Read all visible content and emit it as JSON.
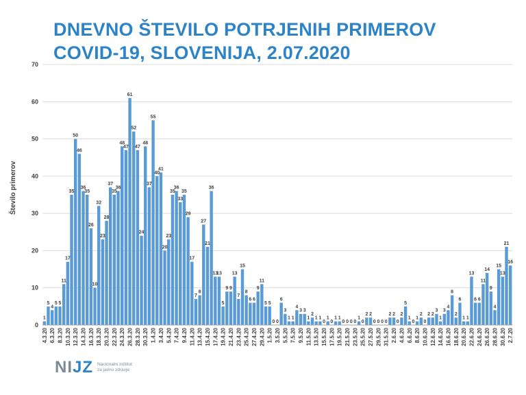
{
  "header": {
    "title_line1": "DNEVNO ŠTEVILO POTRJENIH PRIMEROV",
    "title_line2": "COVID-19, SLOVENIJA, 2.07.2020"
  },
  "logo": {
    "mark_left": "NI",
    "mark_right": "JZ",
    "text_line1": "Nacionalni inštitut",
    "text_line2": "za javno zdravje"
  },
  "colors": {
    "bar": "#5b9bd5",
    "title": "#2e83c6"
  },
  "chart_data": {
    "type": "bar",
    "title": "DNEVNO ŠTEVILO POTRJENIH PRIMEROV COVID-19, SLOVENIJA, 2.07.2020",
    "xlabel": "",
    "ylabel": "Število primerov",
    "ylim": [
      0,
      70
    ],
    "yticks": [
      0,
      10,
      20,
      30,
      40,
      50,
      60,
      70
    ],
    "grid": true,
    "start_date": "2020-03-04",
    "end_date": "2020-07-02",
    "xtick_labels": [
      "4.3.20",
      "6.3.20",
      "8.3.20",
      "10.3.20",
      "12.3.20",
      "14.3.20",
      "16.3.20",
      "18.3.20",
      "20.3.20",
      "22.3.20",
      "24.3.20",
      "26.3.20",
      "28.3.20",
      "30.3.20",
      "1.4.20",
      "3.4.20",
      "5.4.20",
      "7.4.20",
      "9.4.20",
      "11.4.20",
      "13.4.20",
      "15.4.20",
      "17.4.20",
      "19.4.20",
      "21.4.20",
      "23.4.20",
      "25.4.20",
      "27.4.20",
      "29.4.20",
      "1.5.20",
      "3.5.20",
      "5.5.20",
      "7.5.20",
      "9.5.20",
      "11.5.20",
      "13.5.20",
      "15.5.20",
      "17.5.20",
      "19.5.20",
      "21.5.20",
      "23.5.20",
      "25.5.20",
      "27.5.20",
      "29.5.20",
      "31.5.20",
      "2.6.20",
      "4.6.20",
      "6.6.20",
      "8.6.20",
      "10.6.20",
      "12.6.20",
      "14.6.20",
      "16.6.20",
      "18.6.20",
      "20.6.20",
      "22.6.20",
      "24.6.20",
      "26.6.20",
      "28.6.20",
      "30.6.20",
      "2.7.20"
    ],
    "values": [
      1,
      5,
      4,
      5,
      5,
      11,
      17,
      35,
      50,
      46,
      36,
      35,
      26,
      10,
      32,
      23,
      28,
      37,
      35,
      36,
      48,
      47,
      61,
      52,
      47,
      24,
      48,
      37,
      55,
      40,
      41,
      20,
      23,
      35,
      36,
      33,
      35,
      29,
      17,
      7,
      8,
      27,
      21,
      36,
      13,
      13,
      5,
      9,
      9,
      13,
      7,
      15,
      8,
      6,
      6,
      9,
      11,
      5,
      5,
      0,
      0,
      6,
      3,
      1,
      1,
      4,
      3,
      3,
      1,
      2,
      1,
      1,
      0,
      1,
      0,
      1,
      1,
      0,
      0,
      0,
      0,
      1,
      0,
      2,
      2,
      0,
      0,
      0,
      0,
      2,
      2,
      0,
      2,
      5,
      1,
      0,
      1,
      2,
      0,
      2,
      2,
      3,
      1,
      3,
      4,
      8,
      2,
      6,
      1,
      1,
      13,
      6,
      6,
      11,
      14,
      9,
      4,
      15,
      13,
      21,
      16
    ]
  }
}
